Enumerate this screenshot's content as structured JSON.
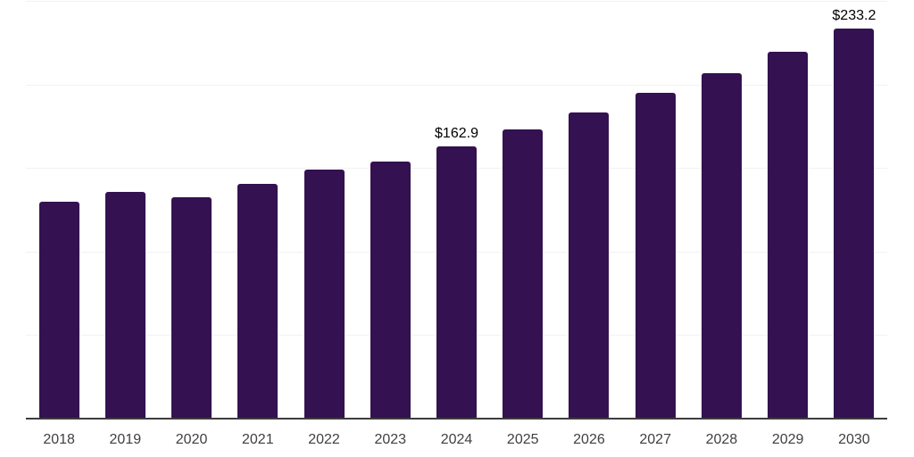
{
  "chart_data": {
    "type": "bar",
    "title": "",
    "xlabel": "",
    "ylabel": "",
    "categories": [
      "2018",
      "2019",
      "2020",
      "2021",
      "2022",
      "2023",
      "2024",
      "2025",
      "2026",
      "2027",
      "2028",
      "2029",
      "2030"
    ],
    "values": [
      129.7,
      135.9,
      132.7,
      140.3,
      148.8,
      154.0,
      162.9,
      172.9,
      183.5,
      194.8,
      206.8,
      219.6,
      233.2
    ],
    "data_labels": [
      {
        "category": "2024",
        "text": "$162.9"
      },
      {
        "category": "2030",
        "text": "$233.2"
      }
    ],
    "ylim": [
      0,
      250
    ],
    "gridline_step": 50,
    "grid": true,
    "legend": false,
    "colors": {
      "bar": "#341150",
      "axis_line": "#3d3d3d",
      "gridline": "#f2f2f2",
      "tick_label": "#404040",
      "data_label": "#000000",
      "background": "#ffffff"
    }
  }
}
